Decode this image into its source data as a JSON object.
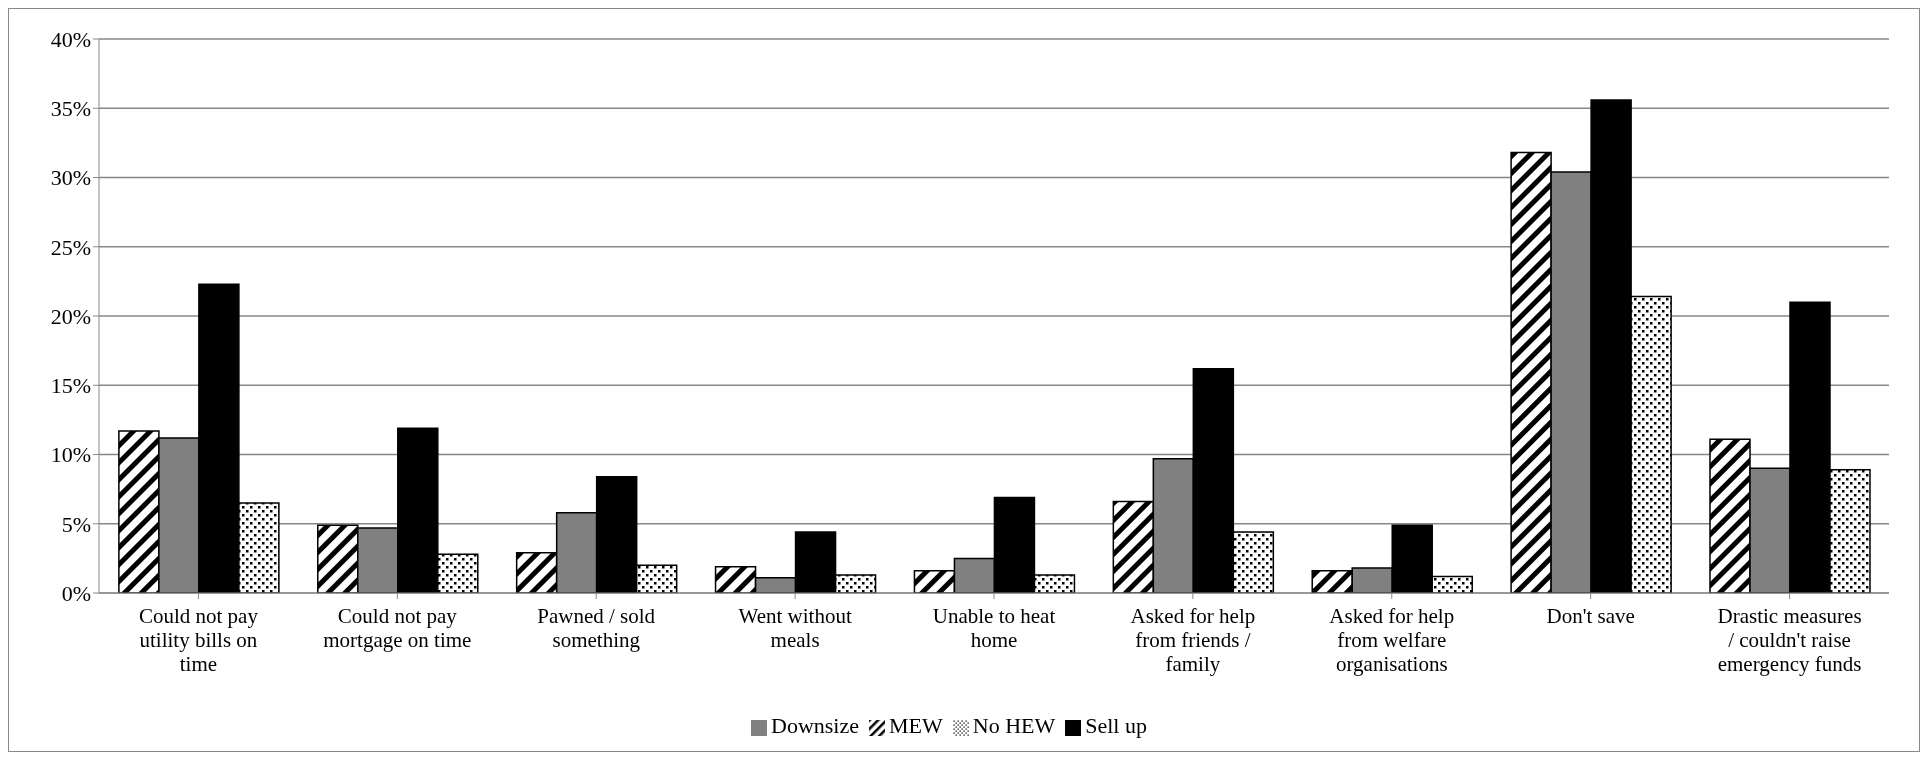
{
  "chart_data": {
    "type": "bar",
    "categories": [
      "Could not pay utility bills on time",
      "Could not pay mortgage on time",
      "Pawned / sold something",
      "Went without meals",
      "Unable to heat home",
      "Asked for help from friends / family",
      "Asked for help from welfare organisations",
      "Don't save",
      "Drastic measures / couldn't raise emergency funds"
    ],
    "series": [
      {
        "name": "MEW",
        "color": "#000000",
        "values": [
          11.7,
          4.9,
          2.9,
          1.9,
          1.6,
          6.6,
          1.6,
          31.8,
          11.1
        ]
      },
      {
        "name": "Downsize",
        "color": "#808080",
        "values": [
          11.2,
          4.7,
          5.8,
          1.1,
          2.5,
          9.7,
          1.8,
          30.4,
          9.0
        ]
      },
      {
        "name": "Sell up",
        "color": "#000000",
        "values": [
          22.3,
          11.9,
          8.4,
          4.4,
          6.9,
          16.2,
          4.9,
          35.6,
          21.0
        ]
      },
      {
        "name": "No HEW",
        "color": "#000000",
        "values": [
          6.5,
          2.8,
          2.0,
          1.3,
          1.3,
          4.4,
          1.2,
          21.4,
          8.9
        ]
      }
    ],
    "ylim": [
      0,
      40
    ],
    "yticks": [
      {
        "value": 0,
        "label": "0%"
      },
      {
        "value": 5,
        "label": "5%"
      },
      {
        "value": 10,
        "label": "10%"
      },
      {
        "value": 15,
        "label": "15%"
      },
      {
        "value": 20,
        "label": "20%"
      },
      {
        "value": 25,
        "label": "25%"
      },
      {
        "value": 30,
        "label": "30%"
      },
      {
        "value": 35,
        "label": "35%"
      },
      {
        "value": 40,
        "label": "40%"
      }
    ],
    "grid": "y",
    "legend": "bottom"
  }
}
